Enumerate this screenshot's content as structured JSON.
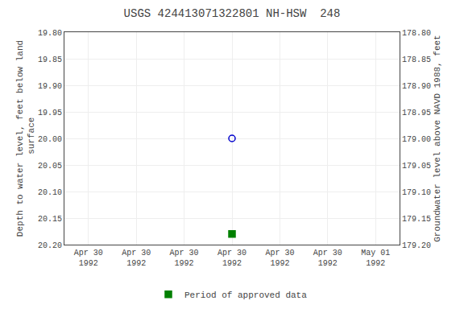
{
  "chart_data": {
    "type": "scatter",
    "title": "USGS 424413071322801 NH-HSW  248",
    "ylabel": "Depth to water level, feet below land\n surface",
    "y2label": "Groundwater level above NAVD 1988, feet",
    "categories": [
      "Apr 30\n1992",
      "Apr 30\n1992",
      "Apr 30\n1992",
      "Apr 30\n1992",
      "Apr 30\n1992",
      "Apr 30\n1992",
      "May 01\n1992"
    ],
    "series": [
      {
        "color": "#0000cc",
        "marker": "circle-open",
        "values": [
          null,
          null,
          null,
          20.0,
          null,
          null,
          null
        ]
      },
      {
        "name": "Period of approved data",
        "color": "#008000",
        "marker": "square",
        "values": [
          null,
          null,
          null,
          20.18,
          null,
          null,
          null
        ]
      }
    ],
    "ylim": [
      20.2,
      19.8
    ],
    "yticks": [
      {
        "value": 19.8,
        "label": "19.80"
      },
      19.85,
      {
        "value": 19.9,
        "label": "19.90"
      },
      19.95,
      {
        "value": 20.0,
        "label": "20.00"
      },
      20.05,
      {
        "value": 20.1,
        "label": "20.10"
      },
      20.15,
      {
        "value": 20.2,
        "label": "20.20"
      }
    ],
    "y2lim": [
      179.2,
      178.8
    ],
    "y2ticks": [
      {
        "value": 179.2,
        "label": "179.20"
      },
      179.15,
      {
        "value": 179.1,
        "label": "179.10"
      },
      179.05,
      {
        "value": 179.0,
        "label": "179.00"
      },
      178.95,
      {
        "value": 178.9,
        "label": "178.90"
      },
      178.85,
      {
        "value": 178.8,
        "label": "178.80"
      }
    ],
    "grid": true,
    "legend": "bottom"
  }
}
